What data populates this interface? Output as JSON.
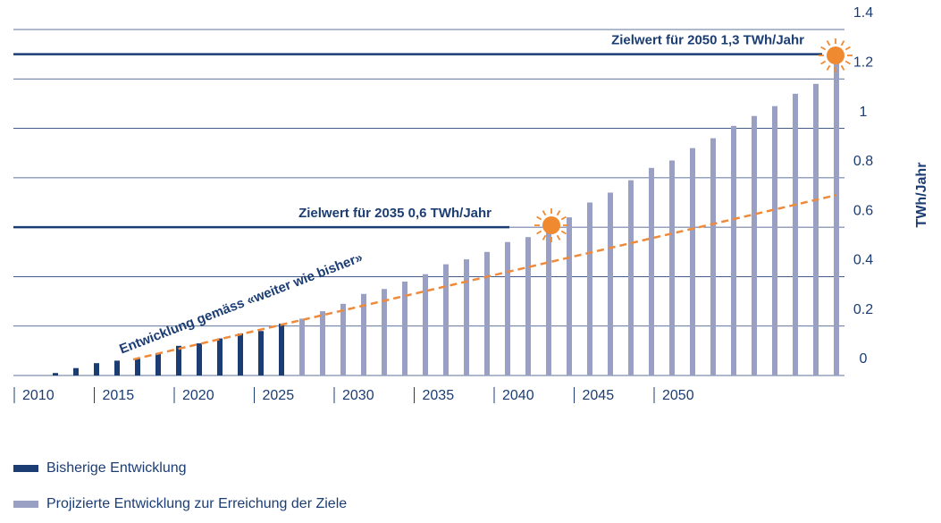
{
  "chart_data": {
    "type": "bar",
    "y_label": "TWh/Jahr",
    "x_labels": [
      "2010",
      "2015",
      "2020",
      "2025",
      "2030",
      "2035",
      "2040",
      "2045",
      "2050"
    ],
    "ylim": [
      0,
      1.4
    ],
    "yticks": [
      0,
      0.2,
      0.4,
      0.6,
      0.8,
      1,
      1.2,
      1.4
    ],
    "grid": true,
    "series": [
      {
        "name": "Bisherige Entwicklung",
        "color": "#1b3d73",
        "values": [
          0.01,
          0.03,
          0.05,
          0.06,
          0.07,
          0.09,
          0.12,
          0.13,
          0.15,
          0.17,
          0.18,
          0.21,
          null,
          null,
          null,
          null,
          null,
          null,
          null,
          null,
          null,
          null,
          null,
          null,
          null,
          null,
          null,
          null,
          null,
          null,
          null,
          null,
          null,
          null,
          null,
          null,
          null,
          null,
          null
        ]
      },
      {
        "name": "Projizierte Entwicklung zur Erreichung der Ziele",
        "color": "#9a9fc4",
        "values": [
          null,
          null,
          null,
          null,
          null,
          null,
          null,
          null,
          null,
          null,
          null,
          null,
          0.23,
          0.26,
          0.29,
          0.33,
          0.35,
          0.38,
          0.41,
          0.45,
          0.47,
          0.5,
          0.54,
          0.56,
          0.61,
          0.64,
          0.7,
          0.74,
          0.79,
          0.84,
          0.87,
          0.92,
          0.96,
          1.01,
          1.05,
          1.09,
          1.14,
          1.18,
          1.3
        ]
      }
    ],
    "targets": [
      {
        "label": "Zielwert für 2035 0,6 TWh/Jahr",
        "value": 0.6
      },
      {
        "label": "Zielwert für 2050 1,3 TWh/Jahr",
        "value": 1.3
      }
    ],
    "trend": {
      "label": "Entwicklung gemäss «weiter wie bisher»",
      "color": "#ee8a3c",
      "values": [
        0.065,
        0.73
      ]
    }
  }
}
